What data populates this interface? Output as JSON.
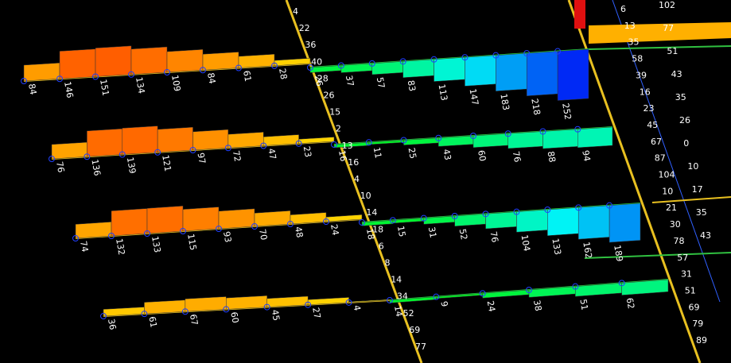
{
  "rows": [
    {
      "left": [
        84,
        146,
        151,
        134,
        109,
        84,
        61,
        28
      ],
      "right": [
        26,
        37,
        57,
        83,
        113,
        147,
        183,
        218,
        252
      ]
    },
    {
      "left": [
        76,
        136,
        139,
        121,
        97,
        72,
        47,
        23
      ],
      "right": [
        16,
        11,
        25,
        43,
        60,
        76,
        88,
        94
      ]
    },
    {
      "left": [
        74,
        132,
        133,
        115,
        93,
        70,
        48,
        24
      ],
      "right": [
        18,
        15,
        31,
        52,
        76,
        104,
        133,
        162,
        189
      ]
    },
    {
      "left": [
        36,
        61,
        67,
        60,
        45,
        27,
        4
      ],
      "right": [
        14,
        9,
        24,
        38,
        51,
        62
      ]
    }
  ],
  "columns": [
    {
      "labels": [
        4,
        22,
        36,
        40,
        28,
        26,
        15,
        2,
        13,
        16,
        4,
        10,
        14,
        18,
        6,
        8,
        14,
        34,
        52,
        69,
        77
      ]
    },
    {
      "labels": [
        6,
        13,
        35,
        58,
        39,
        16,
        23,
        45,
        67,
        87,
        104,
        10,
        21,
        30,
        78,
        57,
        31,
        51,
        69,
        79,
        89
      ]
    },
    {
      "labels": [
        102,
        77,
        51,
        43,
        35,
        26,
        0,
        10,
        17,
        35,
        43
      ]
    }
  ]
}
